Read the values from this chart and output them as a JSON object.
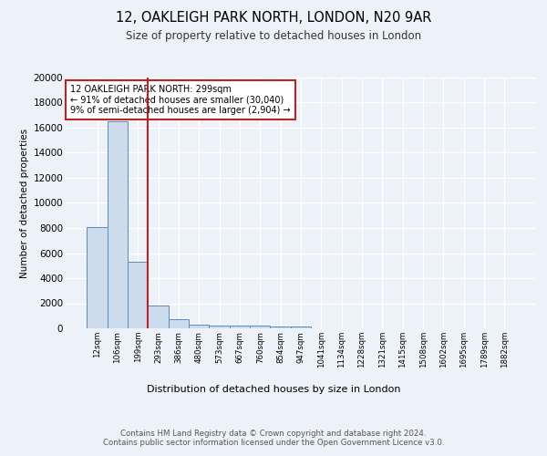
{
  "title_line1": "12, OAKLEIGH PARK NORTH, LONDON, N20 9AR",
  "title_line2": "Size of property relative to detached houses in London",
  "xlabel": "Distribution of detached houses by size in London",
  "ylabel": "Number of detached properties",
  "categories": [
    "12sqm",
    "106sqm",
    "199sqm",
    "293sqm",
    "386sqm",
    "480sqm",
    "573sqm",
    "667sqm",
    "760sqm",
    "854sqm",
    "947sqm",
    "1041sqm",
    "1134sqm",
    "1228sqm",
    "1321sqm",
    "1415sqm",
    "1508sqm",
    "1602sqm",
    "1695sqm",
    "1789sqm",
    "1882sqm"
  ],
  "values": [
    8100,
    16500,
    5300,
    1850,
    700,
    320,
    230,
    210,
    185,
    175,
    155,
    0,
    0,
    0,
    0,
    0,
    0,
    0,
    0,
    0,
    0
  ],
  "bar_color": "#ccdcec",
  "bar_edge_color": "#5b8db8",
  "vline_x_index": 3,
  "vline_color": "#bb2222",
  "annotation_text": "12 OAKLEIGH PARK NORTH: 299sqm\n← 91% of detached houses are smaller (30,040)\n9% of semi-detached houses are larger (2,904) →",
  "annotation_box_color": "white",
  "annotation_box_edge_color": "#bb2222",
  "ylim": [
    0,
    20000
  ],
  "yticks": [
    0,
    2000,
    4000,
    6000,
    8000,
    10000,
    12000,
    14000,
    16000,
    18000,
    20000
  ],
  "footer_text": "Contains HM Land Registry data © Crown copyright and database right 2024.\nContains public sector information licensed under the Open Government Licence v3.0.",
  "bg_color": "#edf2f8",
  "plot_bg_color": "#edf2f8",
  "grid_color": "#ffffff"
}
